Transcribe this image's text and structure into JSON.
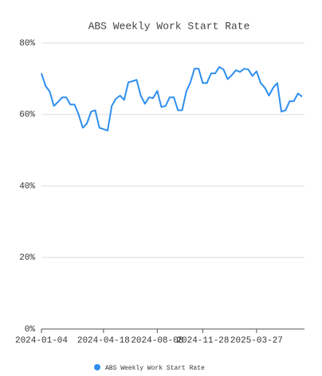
{
  "chart_data": {
    "type": "line",
    "title": "ABS Weekly Work Start Rate",
    "categories": [
      "2024-01-04",
      null,
      null,
      null,
      null,
      null,
      null,
      null,
      null,
      null,
      null,
      null,
      null,
      null,
      null,
      "2024-04-18",
      null,
      null,
      null,
      null,
      null,
      null,
      null,
      null,
      null,
      null,
      null,
      null,
      "2024-08-08",
      null,
      null,
      null,
      null,
      null,
      null,
      null,
      null,
      null,
      null,
      "2024-11-28",
      null,
      null,
      null,
      null,
      null,
      null,
      null,
      null,
      null,
      null,
      null,
      null,
      "2025-03-27",
      null,
      null,
      null,
      null,
      null,
      null,
      null,
      null,
      null,
      null,
      null
    ],
    "series": [
      {
        "name": "ABS Weekly Work Start Rate",
        "color": "#2f8ff0",
        "values": [
          71.5,
          68,
          66.4,
          62.4,
          63.5,
          64.8,
          64.8,
          62.8,
          62.8,
          60,
          56.3,
          57.5,
          60.8,
          61.2,
          56.3,
          55.9,
          55.5,
          62.4,
          64.4,
          65.3,
          64.1,
          69,
          69.3,
          69.7,
          65.3,
          63,
          64.8,
          64.6,
          66.6,
          62.1,
          62.4,
          64.8,
          64.8,
          61.2,
          61.2,
          66.4,
          69,
          72.8,
          72.8,
          68.8,
          68.8,
          71.5,
          71.5,
          73.3,
          72.6,
          69.9,
          71,
          72.4,
          71.9,
          72.8,
          72.6,
          70.8,
          72.1,
          68.8,
          67.5,
          65.3,
          67.5,
          68.8,
          60.8,
          61.2,
          63.7,
          63.7,
          65.9,
          65
        ]
      }
    ],
    "ylim": [
      0,
      80
    ],
    "yticks": [
      {
        "value": 0,
        "label": "0%"
      },
      {
        "value": 20,
        "label": "20%"
      },
      {
        "value": 40,
        "label": "40%"
      },
      {
        "value": 60,
        "label": "60%"
      },
      {
        "value": 80,
        "label": "80%"
      }
    ],
    "grid": true,
    "legend": "bottom"
  }
}
